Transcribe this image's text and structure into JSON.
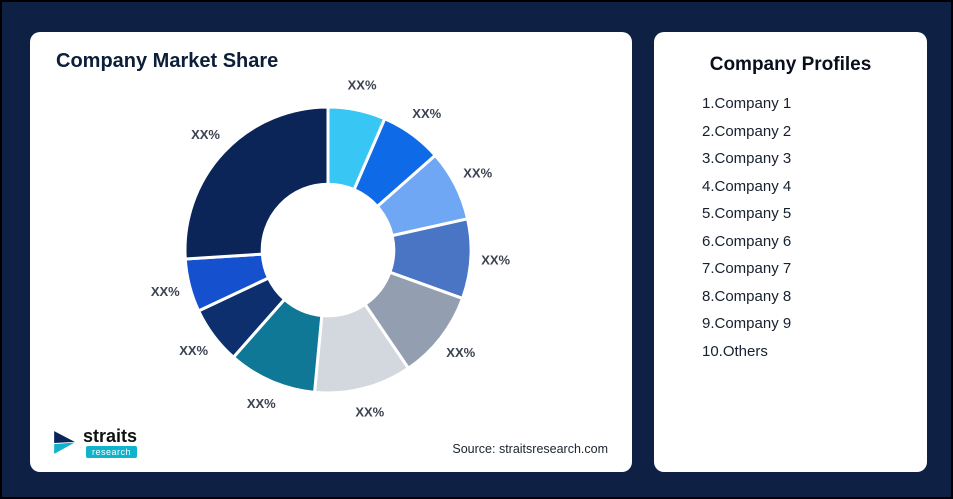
{
  "page": {
    "background": "#0e2145"
  },
  "left_card": {
    "title": "Company Market Share",
    "source": "Source: straitsresearch.com",
    "logo": {
      "name": "straits",
      "sub": "research"
    }
  },
  "right_card": {
    "title": "Company Profiles",
    "items": [
      "1.Company 1",
      "2.Company 2",
      "3.Company 3",
      "4.Company 4",
      "5.Company 5",
      "6.Company 6",
      "7.Company 7",
      "8.Company 8",
      "9.Company 9",
      "10.Others"
    ]
  },
  "chart_data": {
    "type": "pie",
    "donut": true,
    "title": "Company Market Share",
    "categories": [
      "Company 1",
      "Company 2",
      "Company 3",
      "Company 4",
      "Company 5",
      "Company 6",
      "Company 7",
      "Company 8",
      "Company 9",
      "Others"
    ],
    "values": [
      6.5,
      7,
      8,
      9,
      10,
      11,
      10,
      6.5,
      6,
      26
    ],
    "value_labels": [
      "XX%",
      "XX%",
      "XX%",
      "XX%",
      "XX%",
      "XX%",
      "XX%",
      "XX%",
      "XX%",
      "XX%"
    ],
    "colors": [
      "#38c6f4",
      "#0f6ae8",
      "#70a7f4",
      "#4a74c4",
      "#939fb0",
      "#d3d8df",
      "#0e7896",
      "#0e2f6e",
      "#1550cf",
      "#0b2559"
    ],
    "start_angle_deg": 0,
    "inner_radius_ratio": 0.46,
    "slice_gap_color": "#ffffff",
    "label_color": "#3a4350",
    "legend": "none"
  }
}
